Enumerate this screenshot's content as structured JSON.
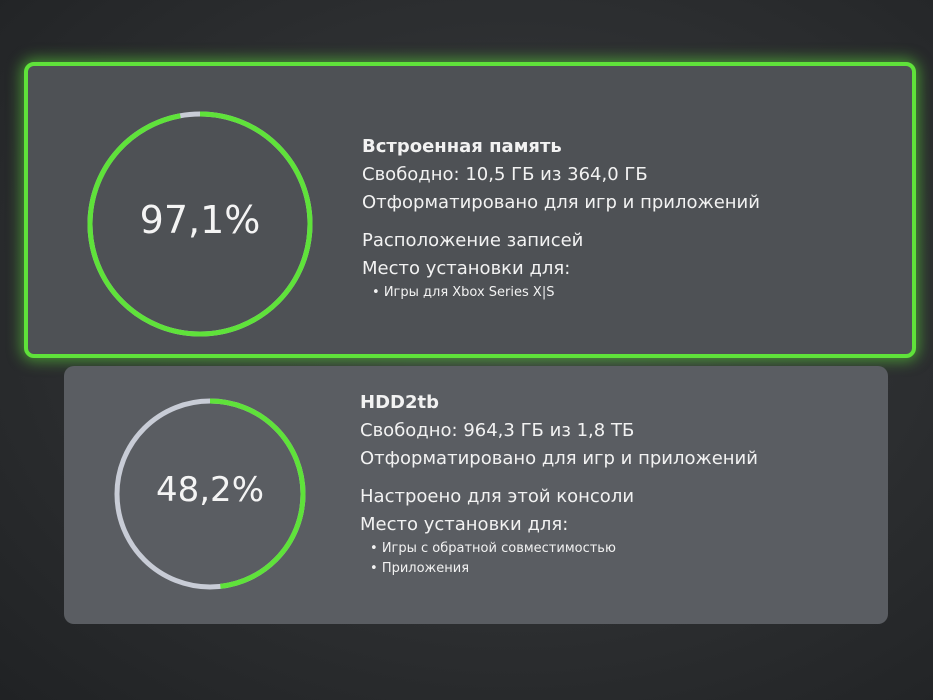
{
  "accent_color": "#5fe23a",
  "free_color": "#c8ccd6",
  "drives": [
    {
      "name": "Встроенная память",
      "percent_label": "97,1%",
      "used_fraction": 0.971,
      "free": "Свободно: 10,5 ГБ из 364,0 ГБ",
      "format": "Отформатировано для игр и приложений",
      "extra": "Расположение записей",
      "install_label": "Место установки для:",
      "install_items": [
        "Игры для Xbox Series X|S"
      ],
      "selected": true
    },
    {
      "name": "HDD2tb",
      "percent_label": "48,2%",
      "used_fraction": 0.482,
      "free": "Свободно: 964,3 ГБ из 1,8 ТБ",
      "format": "Отформатировано для игр и приложений",
      "extra": "Настроено для этой консоли",
      "install_label": "Место установки для:",
      "install_items": [
        "Игры с обратной совместимостью",
        "Приложения"
      ],
      "selected": false
    }
  ]
}
